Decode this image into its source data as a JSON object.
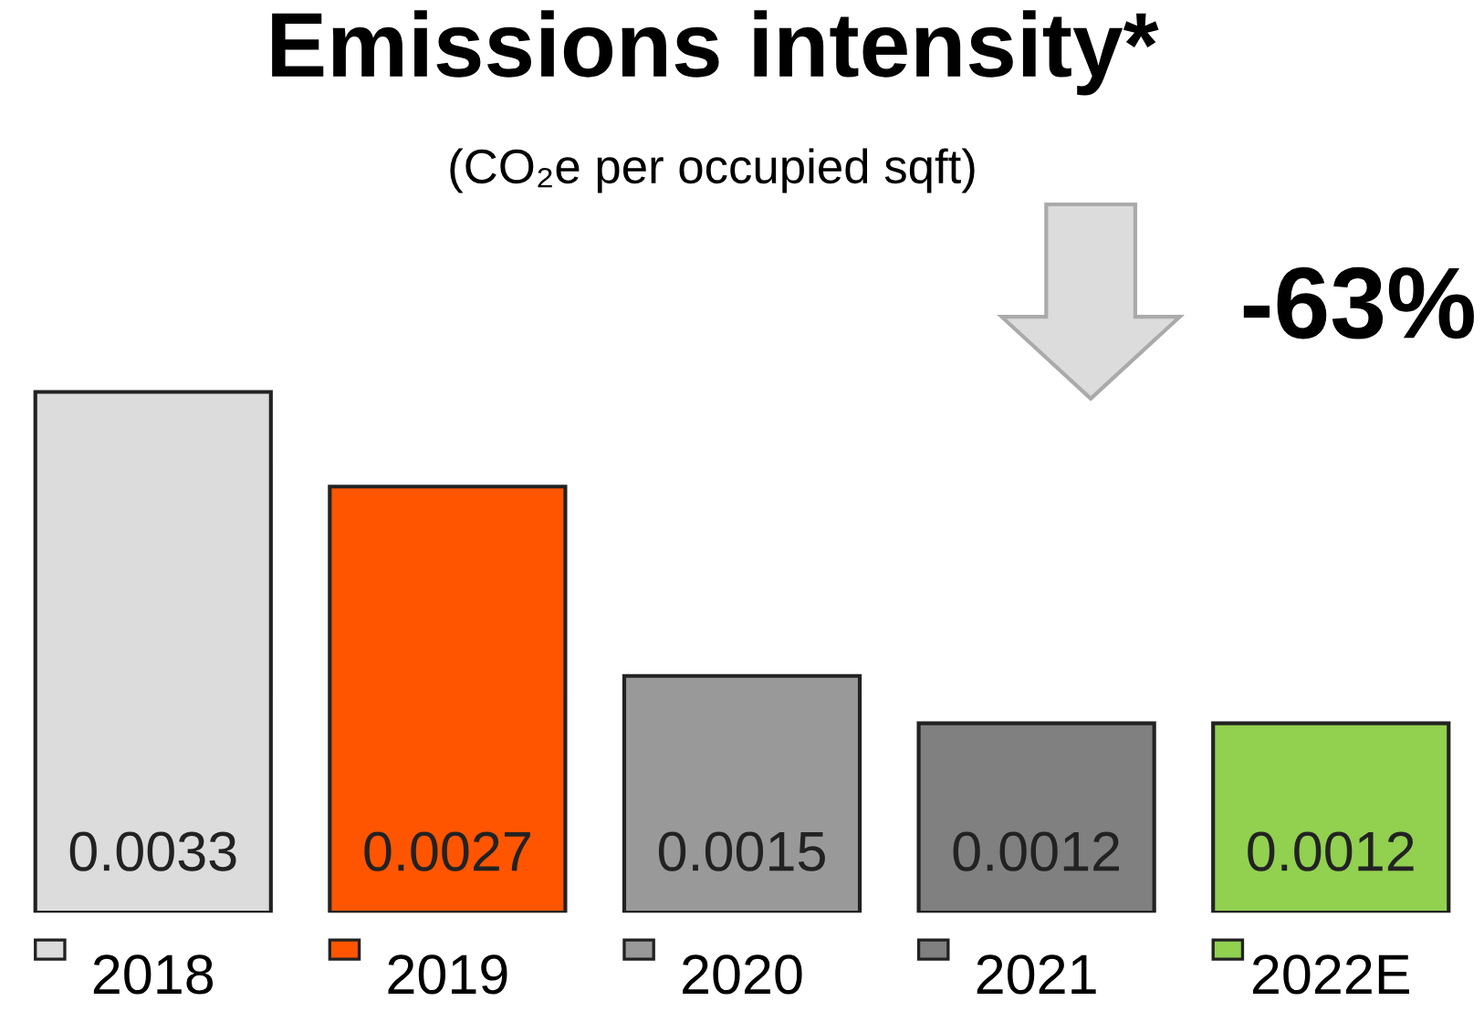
{
  "chart_data": {
    "type": "bar",
    "title": "Emissions intensity*",
    "subtitle": "(CO₂e per occupied sqft)",
    "categories": [
      "2018",
      "2019",
      "2020",
      "2021",
      "2022E"
    ],
    "values": [
      0.0033,
      0.0027,
      0.0015,
      0.0012,
      0.0012
    ],
    "colors": [
      "#dcdcdc",
      "#ff5500",
      "#999999",
      "#808080",
      "#92d050"
    ],
    "annotations": [
      "-63%"
    ],
    "data_labels": true,
    "grid": false
  }
}
